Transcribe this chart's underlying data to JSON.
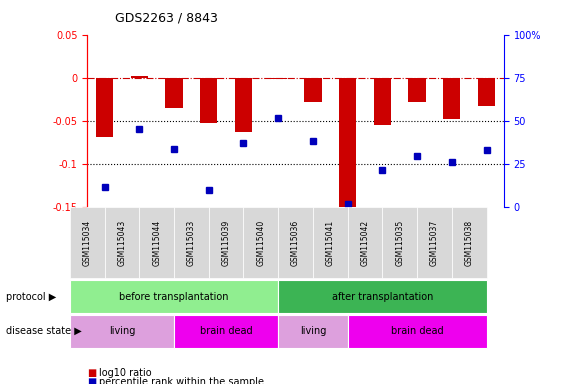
{
  "title": "GDS2263 / 8843",
  "samples": [
    "GSM115034",
    "GSM115043",
    "GSM115044",
    "GSM115033",
    "GSM115039",
    "GSM115040",
    "GSM115036",
    "GSM115041",
    "GSM115042",
    "GSM115035",
    "GSM115037",
    "GSM115038"
  ],
  "log10_ratio": [
    -0.068,
    0.002,
    -0.035,
    -0.052,
    -0.063,
    -0.001,
    -0.028,
    -0.155,
    -0.055,
    -0.028,
    -0.048,
    -0.033
  ],
  "percentile_rank": [
    11.5,
    45.5,
    33.5,
    10.0,
    37.5,
    52.0,
    38.5,
    2.0,
    21.5,
    30.0,
    26.5,
    33.0
  ],
  "ylim_left": [
    -0.15,
    0.05
  ],
  "ylim_right": [
    0,
    100
  ],
  "yticks_left": [
    -0.15,
    -0.1,
    -0.05,
    0,
    0.05
  ],
  "ytick_labels_left": [
    "-0.15",
    "-0.1",
    "-0.05",
    "0",
    "0.05"
  ],
  "yticks_right": [
    0,
    25,
    50,
    75,
    100
  ],
  "ytick_labels_right": [
    "0",
    "25",
    "50",
    "75",
    "100%"
  ],
  "protocol_groups": [
    {
      "label": "before transplantation",
      "start": 0,
      "end": 6,
      "color": "#90EE90"
    },
    {
      "label": "after transplantation",
      "start": 6,
      "end": 12,
      "color": "#3CB454"
    }
  ],
  "disease_groups": [
    {
      "label": "living",
      "start": 0,
      "end": 3,
      "color": "#DDA0DD"
    },
    {
      "label": "brain dead",
      "start": 3,
      "end": 6,
      "color": "#EE00EE"
    },
    {
      "label": "living",
      "start": 6,
      "end": 8,
      "color": "#DDA0DD"
    },
    {
      "label": "brain dead",
      "start": 8,
      "end": 12,
      "color": "#EE00EE"
    }
  ],
  "bar_color": "#CC0000",
  "dot_color": "#0000BB",
  "hline_color": "#CC0000",
  "dotted_line_color": "#000000",
  "background_color": "#ffffff",
  "protocol_label": "protocol",
  "disease_label": "disease state",
  "legend_items": [
    {
      "color": "#CC0000",
      "label": "log10 ratio"
    },
    {
      "color": "#0000BB",
      "label": "percentile rank within the sample"
    }
  ]
}
